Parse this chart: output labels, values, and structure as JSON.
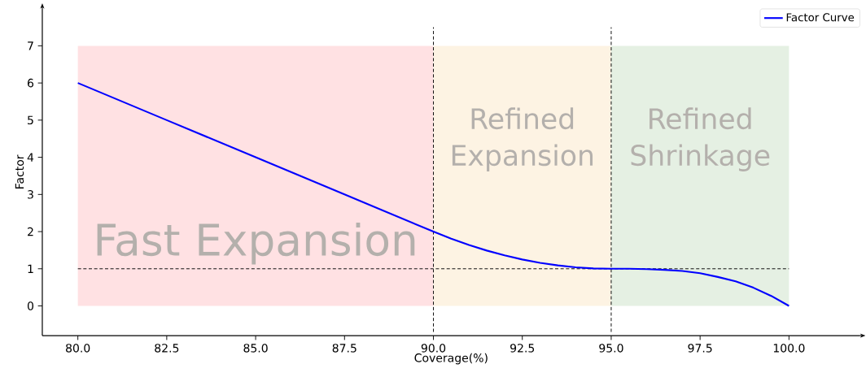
{
  "chart_data": {
    "type": "line",
    "xlabel": "Coverage(%)",
    "ylabel": "Factor",
    "xlim": [
      79,
      102
    ],
    "ylim": [
      -0.8,
      8
    ],
    "xticks": [
      {
        "value": 80,
        "label": "80.0"
      },
      {
        "value": 82.5,
        "label": "82.5"
      },
      {
        "value": 85,
        "label": "85.0"
      },
      {
        "value": 87.5,
        "label": "87.5"
      },
      {
        "value": 90,
        "label": "90.0"
      },
      {
        "value": 92.5,
        "label": "92.5"
      },
      {
        "value": 95,
        "label": "95.0"
      },
      {
        "value": 97.5,
        "label": "97.5"
      },
      {
        "value": 100,
        "label": "100.0"
      }
    ],
    "yticks": [
      0,
      1,
      2,
      3,
      4,
      5,
      6,
      7
    ],
    "x": [
      80,
      82.5,
      85,
      87.5,
      90,
      90.5,
      91,
      91.5,
      92,
      92.5,
      93,
      93.5,
      94,
      94.5,
      95,
      95.5,
      96,
      96.5,
      97,
      97.5,
      98,
      98.5,
      99,
      99.5,
      100
    ],
    "series": [
      {
        "name": "Factor Curve",
        "color": "#0000ff",
        "values": [
          6,
          5,
          4,
          3,
          2,
          1.81,
          1.64,
          1.49,
          1.36,
          1.25,
          1.16,
          1.09,
          1.04,
          1.01,
          1,
          1.0,
          0.99,
          0.97,
          0.94,
          0.88,
          0.78,
          0.66,
          0.49,
          0.27,
          0
        ]
      }
    ],
    "bands": [
      {
        "axis": "x",
        "from": 80,
        "to": 90,
        "label": "Fast Expansion",
        "color": "#ffe1e3"
      },
      {
        "axis": "x",
        "from": 90,
        "to": 95,
        "label": "Refined Expansion",
        "color": "#fdf3e3"
      },
      {
        "axis": "x",
        "from": 95,
        "to": 100,
        "label": "Refined Shrinkage",
        "color": "#e5f0e3"
      }
    ],
    "ref_lines": [
      {
        "axis": "x",
        "value": 90,
        "line_style": "dashed",
        "color": "#000000"
      },
      {
        "axis": "x",
        "value": 95,
        "line_style": "dashed",
        "color": "#000000"
      },
      {
        "axis": "y",
        "value": 1,
        "line_style": "dashed",
        "color": "#000000"
      }
    ],
    "legend": "top right",
    "marker": "none",
    "line_style": "solid"
  }
}
